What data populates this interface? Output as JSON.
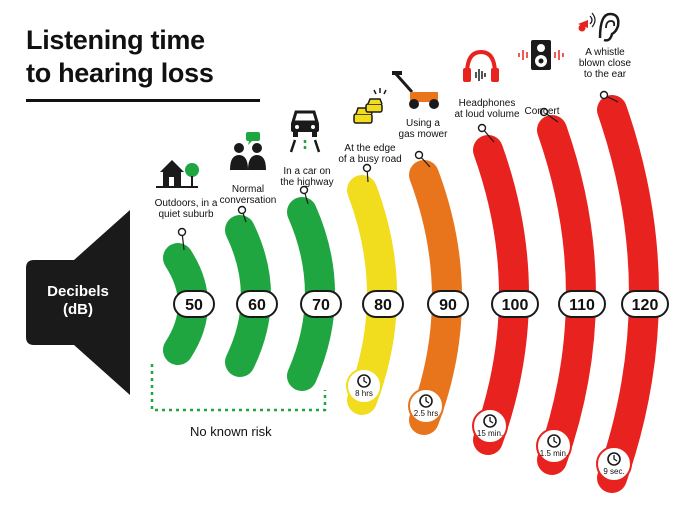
{
  "title": "Listening time\nto hearing loss",
  "speaker_label": "Decibels\n(dB)",
  "no_risk_label": "No known risk",
  "colors": {
    "green": "#1fa641",
    "yellow": "#f2dc1e",
    "orange": "#e8741c",
    "red": "#e8231f",
    "dark": "#1a1a1a"
  },
  "levels": [
    {
      "db": "50",
      "color": "green",
      "time": "",
      "source": "Outdoors, in a\nquiet suburb",
      "icon": "house-icon"
    },
    {
      "db": "60",
      "color": "green",
      "time": "",
      "source": "Normal\nconversation",
      "icon": "conversation-icon"
    },
    {
      "db": "70",
      "color": "green",
      "time": "",
      "source": "In a car on\nthe highway",
      "icon": "car-icon"
    },
    {
      "db": "80",
      "color": "yellow",
      "time": "8 hrs",
      "source": "At the edge\nof a busy road",
      "icon": "traffic-icon"
    },
    {
      "db": "90",
      "color": "orange",
      "time": "2.5 hrs",
      "source": "Using a\ngas mower",
      "icon": "lawn-mower-icon"
    },
    {
      "db": "100",
      "color": "red",
      "time": "15 min.",
      "source": "Headphones\nat loud volume",
      "icon": "headphones-icon"
    },
    {
      "db": "110",
      "color": "red",
      "time": "1.5 min.",
      "source": "Concert",
      "icon": "speaker-icon"
    },
    {
      "db": "120",
      "color": "red",
      "time": "9 sec.",
      "source": "A whistle\nblown close\nto the ear",
      "icon": "whistle-ear-icon"
    }
  ]
}
